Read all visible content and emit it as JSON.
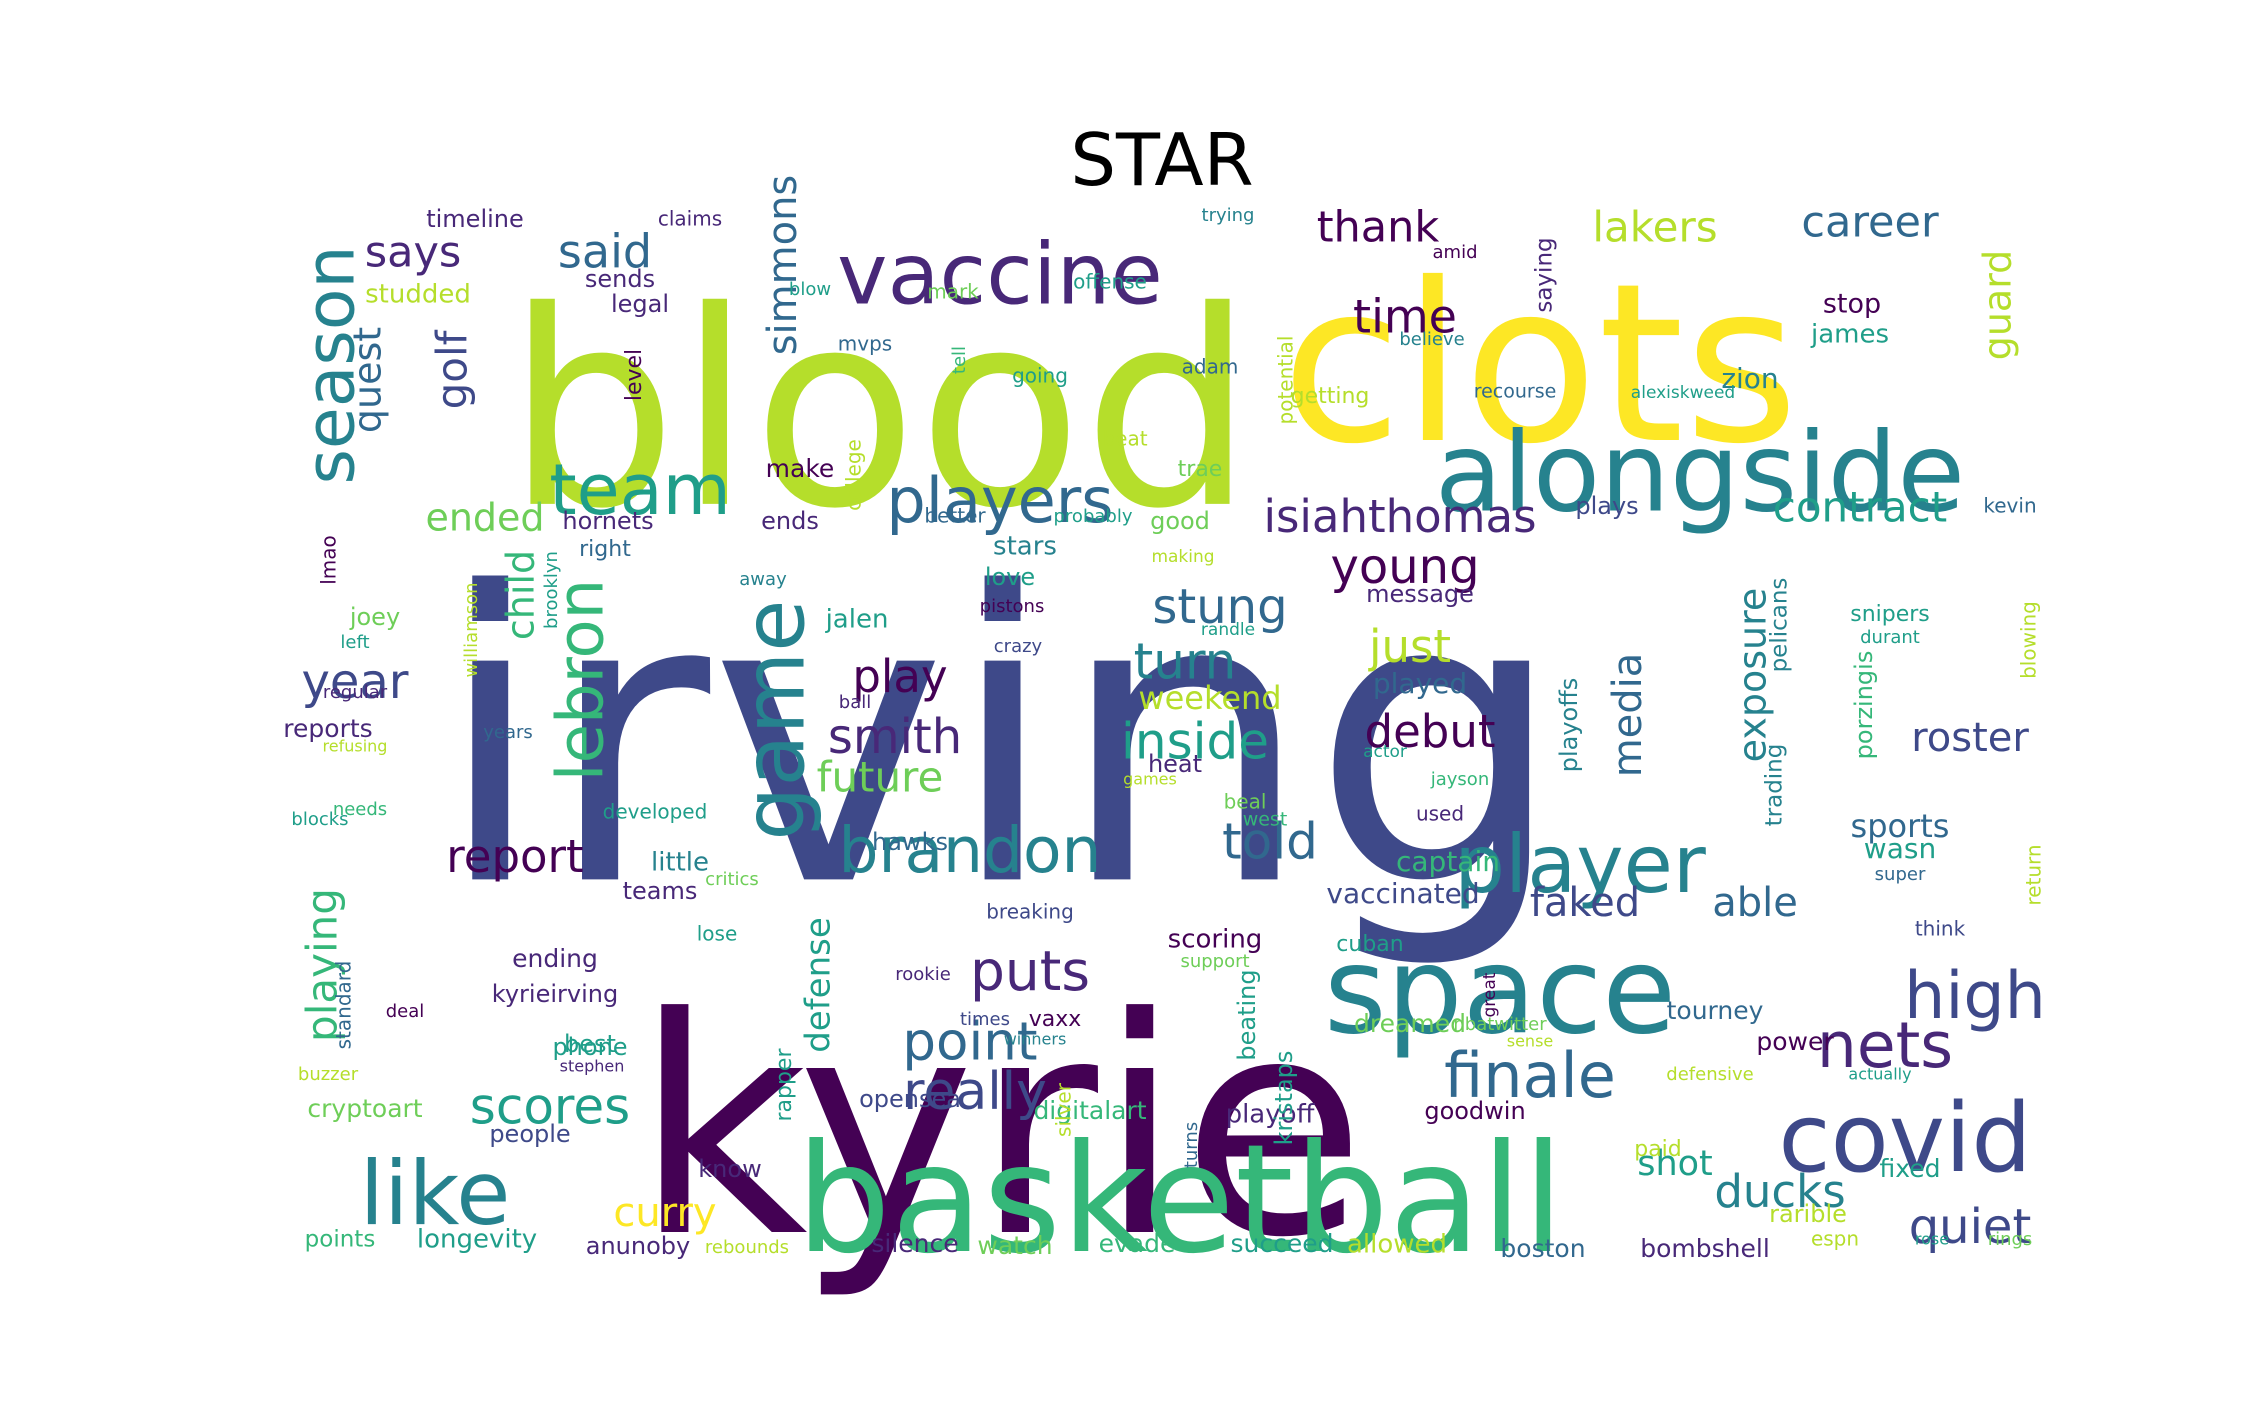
{
  "title": "STAR",
  "palette": {
    "d1": "#440154",
    "d2": "#482878",
    "d3": "#3e4989",
    "d4": "#31688e",
    "d5": "#26828e",
    "d6": "#1f9e89",
    "d7": "#35b779",
    "d8": "#6ece58",
    "d9": "#b5de2b",
    "d10": "#fde725"
  },
  "words": [
    "irving",
    "kyrie",
    "blood",
    "clots",
    "basketball",
    "space",
    "alongside",
    "vaccine",
    "covid",
    "game",
    "player",
    "players",
    "team",
    "season",
    "like",
    "lebron",
    "brandon",
    "high",
    "finale",
    "nets",
    "scores",
    "puts",
    "point",
    "really",
    "isiahthomas",
    "stung",
    "turn",
    "young",
    "said",
    "says",
    "thank",
    "time",
    "lakers",
    "career",
    "told",
    "inside",
    "smith",
    "play",
    "future",
    "report",
    "roster",
    "quiet",
    "ducks",
    "shot",
    "contract",
    "exposure",
    "media",
    "simmons",
    "quest",
    "golf",
    "ended",
    "child",
    "year",
    "just",
    "debut",
    "faked",
    "able",
    "curry",
    "guard",
    "defense",
    "playing",
    "weekend",
    "played",
    "message",
    "zion",
    "james",
    "stop",
    "trading",
    "pelicans",
    "porzingis",
    "playoffs",
    "timeline",
    "claims",
    "trying",
    "studded",
    "sends",
    "legal",
    "mark",
    "offense",
    "blow",
    "mvps",
    "adam",
    "going",
    "potential",
    "amid",
    "saying",
    "believe",
    "recourse",
    "alexiskweed",
    "getting",
    "beat",
    "trae",
    "make",
    "college",
    "better",
    "probably",
    "good",
    "plays",
    "kevin",
    "hornets",
    "ends",
    "right",
    "stars",
    "making",
    "lmao",
    "away",
    "love",
    "pistons",
    "randle",
    "brooklyn",
    "joey",
    "jalen",
    "crazy",
    "left",
    "williamson",
    "regular",
    "ball",
    "reports",
    "years",
    "refusing",
    "actor",
    "heat",
    "games",
    "jayson",
    "needs",
    "developed",
    "blocks",
    "hawks",
    "west",
    "beal",
    "used",
    "teams",
    "breaking",
    "vaccinated",
    "captain",
    "little",
    "critics",
    "sports",
    "wasn",
    "super",
    "snipers",
    "durant",
    "blowing",
    "lose",
    "ending",
    "scoring",
    "support",
    "cuban",
    "think",
    "return",
    "rookie",
    "great",
    "standard",
    "kyrieirving",
    "times",
    "deal",
    "vaxx",
    "rapper",
    "nbatwitter",
    "winners",
    "best",
    "playoff",
    "beating",
    "tourney",
    "power",
    "phone",
    "stephen",
    "dreamed",
    "sense",
    "kristaps",
    "buzzer",
    "defensive",
    "actually",
    "opensea",
    "cryptoart",
    "people",
    "digitalart",
    "silver",
    "goodwin",
    "turns",
    "paid",
    "fixed",
    "rarible",
    "know",
    "points",
    "longevity",
    "anunoby",
    "rebounds",
    "silence",
    "watch",
    "evade",
    "succeed",
    "allowed",
    "boston",
    "bombshell",
    "espn",
    "rose",
    "rings",
    "level",
    "tell"
  ]
}
